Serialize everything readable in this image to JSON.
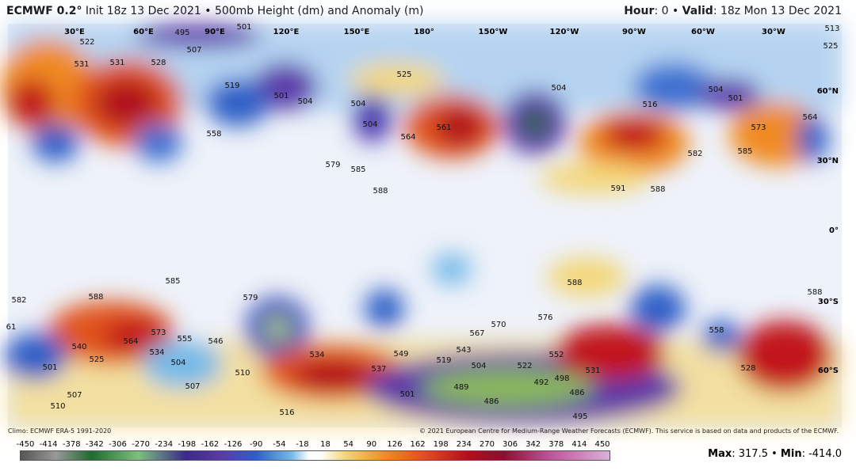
{
  "header": {
    "model": "ECMWF 0.2°",
    "title": "Init 18z 13 Dec 2021 • 500mb Height (dm) and Anomaly (m)",
    "hour_label": "Hour",
    "hour_value": ": 0 • ",
    "valid_label": "Valid",
    "valid_value": ": 18z Mon 13 Dec 2021"
  },
  "map": {
    "longitudes": [
      "30°E",
      "60°E",
      "90°E",
      "120°E",
      "150°E",
      "180°",
      "150°W",
      "120°W",
      "90°W",
      "60°W",
      "30°W"
    ],
    "latitudes": [
      "60°N",
      "30°N",
      "0°",
      "30°S",
      "60°S"
    ],
    "contour_labels": [
      522,
      531,
      531,
      528,
      495,
      501,
      507,
      519,
      501,
      504,
      504,
      504,
      525,
      561,
      564,
      558,
      579,
      585,
      588,
      504,
      516,
      501,
      504,
      573,
      585,
      564,
      582,
      591,
      588,
      525,
      513,
      585,
      582,
      588,
      579,
      564,
      573,
      555,
      546,
      534,
      540,
      525,
      501,
      504,
      507,
      510,
      507,
      510,
      516,
      534,
      549,
      537,
      543,
      519,
      504,
      567,
      570,
      576,
      588,
      522,
      552,
      531,
      498,
      492,
      486,
      489,
      486,
      495,
      501,
      558,
      528,
      588,
      61
    ]
  },
  "footer": {
    "climo": "Climo: ECMWF ERA-5 1991-2020",
    "copyright": "© 2021 European Centre for Medium-Range Weather Forecasts (ECMWF). This service is based on data and products of the ECMWF.",
    "max_label": "Max",
    "max_value": ": 317.5 • ",
    "min_label": "Min",
    "min_value": ": -414.0"
  },
  "colorbar": {
    "ticks": [
      -450,
      -414,
      -378,
      -342,
      -306,
      -270,
      -234,
      -198,
      -162,
      -126,
      -90,
      -54,
      -18,
      18,
      54,
      90,
      126,
      162,
      198,
      234,
      270,
      306,
      342,
      378,
      414,
      450
    ]
  }
}
